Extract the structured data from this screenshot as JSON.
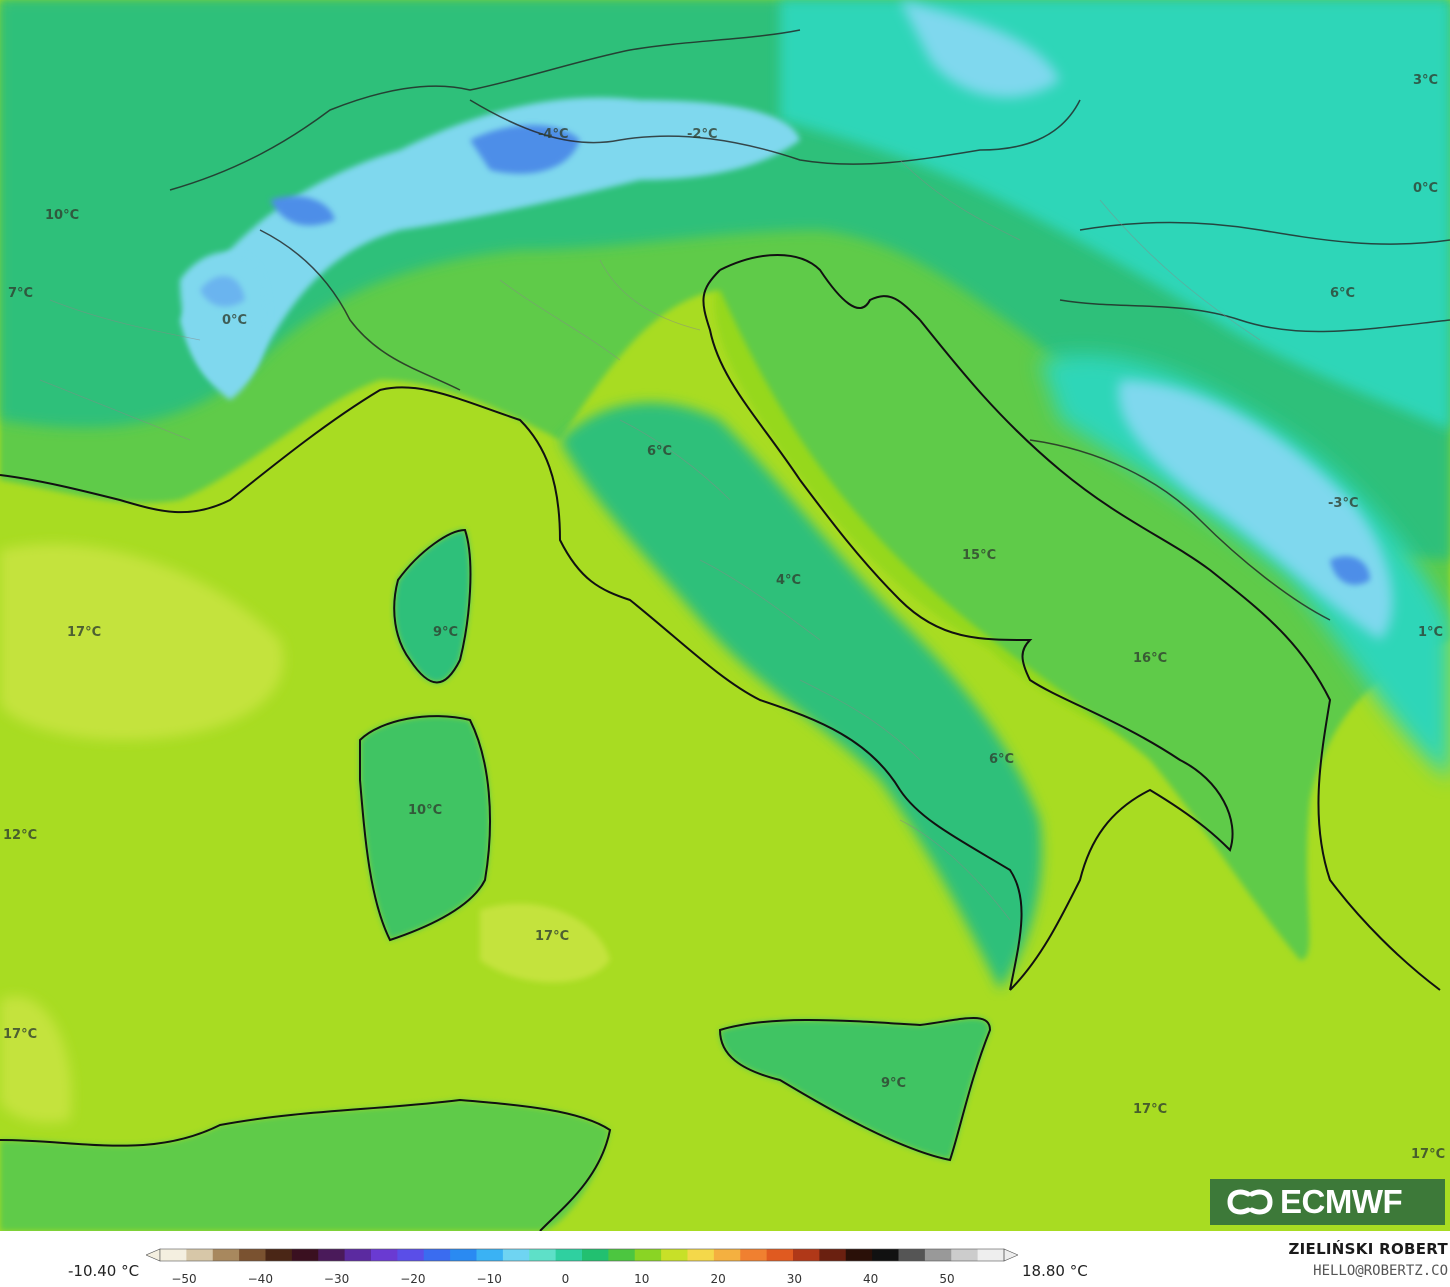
{
  "colors": {
    "sea_warm": "#a8dc22",
    "sea_warmer": "#c4e33c",
    "sea_adriatic": "#96d81a",
    "land_mild": "#5ecb4a",
    "land_cool": "#2fc07a",
    "land_cold": "#2ed6b8",
    "alps_cold": "#7fd8ee",
    "alps_freezing": "#4d8ee8",
    "coast_line": "#111111",
    "border_line": "#777777"
  },
  "labels": {
    "t_m4": "-4°C",
    "t_m2": "-2°C",
    "t_3ne": "3°C",
    "t_0e": "0°C",
    "t_10w": "10°C",
    "t_7w": "7°C",
    "t_0alps": "0°C",
    "t_6e": "6°C",
    "t_6tus": "6°C",
    "t_15": "15°C",
    "t_m3": "-3°C",
    "t_17w": "17°C",
    "t_9cor": "9°C",
    "t_4": "4°C",
    "t_16": "16°C",
    "t_1e": "1°C",
    "t_6s": "6°C",
    "t_12": "12°C",
    "t_10sar": "10°C",
    "t_17c": "17°C",
    "t_17sw": "17°C",
    "t_9sic": "9°C",
    "t_17se": "17°C",
    "t_17fe": "17°C"
  },
  "legend": {
    "min_value": "-10.40 °C",
    "max_value": "18.80 °C",
    "ticks": [
      "−50",
      "−40",
      "−30",
      "−20",
      "−10",
      "0",
      "10",
      "20",
      "30",
      "40",
      "50"
    ],
    "scale_colors": [
      "#f4efe0",
      "#d7c7a8",
      "#a8885e",
      "#7a5230",
      "#4a2616",
      "#3a1020",
      "#4a1a5a",
      "#5b2aa0",
      "#6a3ad2",
      "#5a4ee8",
      "#3a6cf0",
      "#2a8af2",
      "#3ab2f4",
      "#6fd4f2",
      "#5ee0c8",
      "#2fd0a0",
      "#22c070",
      "#4cc640",
      "#8ad424",
      "#c8e028",
      "#f4d84a",
      "#f4b040",
      "#f08030",
      "#e05a20",
      "#b03818",
      "#6a2010",
      "#2a1008",
      "#111111",
      "#555555",
      "#999999",
      "#cccccc",
      "#eeeeee"
    ]
  },
  "brand": {
    "logo": "ECMWF",
    "author": "ZIELIŃSKI ROBERT",
    "contact": "HELLO@ROBERTZ.CO"
  }
}
